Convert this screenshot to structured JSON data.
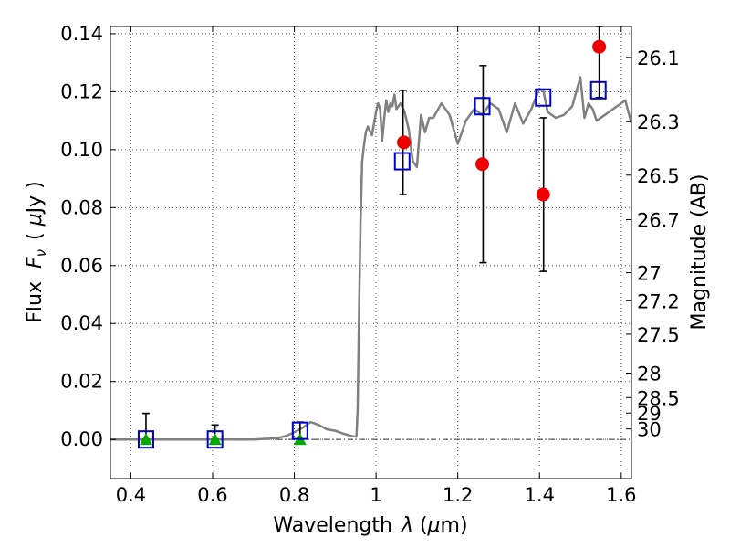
{
  "chart_data": {
    "type": "scatter",
    "xlabel": "Wavelength",
    "xlabel_symbol": "λ",
    "xlabel_unit_open": " (",
    "xlabel_unit_mu": "μ",
    "xlabel_unit_rest": "m)",
    "ylabel": "Flux",
    "ylabel_symbol": "F",
    "ylabel_subscript": "ν",
    "ylabel_unit_open": "( ",
    "ylabel_unit_mu": "μ",
    "ylabel_unit_rest": "Jy )",
    "ylabel_right": "Magnitude (AB)",
    "xlim": [
      0.35,
      1.625
    ],
    "ylim": [
      -0.0135,
      0.1425
    ],
    "grid": true,
    "x_ticks": [
      {
        "v": 0.4,
        "label": "0.4"
      },
      {
        "v": 0.6,
        "label": "0.6"
      },
      {
        "v": 0.8,
        "label": "0.8"
      },
      {
        "v": 1.0,
        "label": "1"
      },
      {
        "v": 1.2,
        "label": "1.2"
      },
      {
        "v": 1.4,
        "label": "1.4"
      },
      {
        "v": 1.6,
        "label": "1.6"
      }
    ],
    "y_ticks": [
      {
        "v": 0.0,
        "label": "0.00"
      },
      {
        "v": 0.02,
        "label": "0.02"
      },
      {
        "v": 0.04,
        "label": "0.04"
      },
      {
        "v": 0.06,
        "label": "0.06"
      },
      {
        "v": 0.08,
        "label": "0.08"
      },
      {
        "v": 0.1,
        "label": "0.10"
      },
      {
        "v": 0.12,
        "label": "0.12"
      },
      {
        "v": 0.14,
        "label": "0.14"
      }
    ],
    "right_ticks": [
      {
        "mag": 26.1,
        "label": "26.1"
      },
      {
        "mag": 26.3,
        "label": "26.3"
      },
      {
        "mag": 26.5,
        "label": "26.5"
      },
      {
        "mag": 26.7,
        "label": "26.7"
      },
      {
        "mag": 27,
        "label": "27"
      },
      {
        "mag": 27.2,
        "label": "27.2"
      },
      {
        "mag": 27.5,
        "label": "27.5"
      },
      {
        "mag": 28,
        "label": "28"
      },
      {
        "mag": 28.5,
        "label": "28.5"
      },
      {
        "mag": 29,
        "label": "29"
      },
      {
        "mag": 30,
        "label": "30"
      }
    ],
    "model_spectrum": {
      "color": "#808080",
      "x": [
        0.35,
        0.4,
        0.45,
        0.5,
        0.55,
        0.6,
        0.65,
        0.7,
        0.74,
        0.76,
        0.78,
        0.8,
        0.82,
        0.84,
        0.86,
        0.88,
        0.9,
        0.92,
        0.94,
        0.952,
        0.955,
        0.958,
        0.962,
        0.966,
        0.97,
        0.975,
        0.98,
        0.99,
        1.0,
        1.005,
        1.01,
        1.015,
        1.02,
        1.025,
        1.03,
        1.035,
        1.04,
        1.045,
        1.05,
        1.06,
        1.07,
        1.08,
        1.09,
        1.1,
        1.11,
        1.12,
        1.13,
        1.14,
        1.16,
        1.18,
        1.2,
        1.22,
        1.24,
        1.26,
        1.28,
        1.3,
        1.32,
        1.34,
        1.36,
        1.38,
        1.4,
        1.41,
        1.42,
        1.44,
        1.46,
        1.48,
        1.5,
        1.51,
        1.52,
        1.53,
        1.54,
        1.56,
        1.58,
        1.6,
        1.61,
        1.625
      ],
      "y": [
        0.0,
        0.0,
        0.0,
        0.0,
        0.0,
        0.0,
        0.0,
        0.0,
        0.0003,
        0.0006,
        0.0012,
        0.0025,
        0.004,
        0.006,
        0.005,
        0.0035,
        0.003,
        0.002,
        0.0012,
        0.0009,
        0.01,
        0.04,
        0.075,
        0.096,
        0.101,
        0.106,
        0.108,
        0.105,
        0.113,
        0.116,
        0.114,
        0.103,
        0.111,
        0.117,
        0.113,
        0.116,
        0.115,
        0.119,
        0.114,
        0.116,
        0.113,
        0.107,
        0.096,
        0.094,
        0.112,
        0.106,
        0.111,
        0.111,
        0.116,
        0.112,
        0.102,
        0.11,
        0.114,
        0.112,
        0.116,
        0.114,
        0.106,
        0.116,
        0.109,
        0.114,
        0.121,
        0.12,
        0.113,
        0.111,
        0.112,
        0.115,
        0.125,
        0.111,
        0.116,
        0.114,
        0.11,
        0.112,
        0.114,
        0.116,
        0.117,
        0.109
      ]
    },
    "series": [
      {
        "marker": "square",
        "color": "#0000cc",
        "points": [
          {
            "x": 0.437,
            "y": 0.0
          },
          {
            "x": 0.606,
            "y": 0.0
          },
          {
            "x": 0.814,
            "y": 0.003
          },
          {
            "x": 1.064,
            "y": 0.096
          },
          {
            "x": 1.26,
            "y": 0.115
          },
          {
            "x": 1.409,
            "y": 0.118
          },
          {
            "x": 1.544,
            "y": 0.1205
          }
        ]
      },
      {
        "marker": "circle",
        "color": "#ee0000",
        "points": [
          {
            "x": 1.068,
            "y": 0.1025
          },
          {
            "x": 1.26,
            "y": 0.095
          },
          {
            "x": 1.409,
            "y": 0.0845
          },
          {
            "x": 1.546,
            "y": 0.1355
          }
        ]
      },
      {
        "marker": "triangle",
        "color": "#00aa00",
        "points": [
          {
            "x": 0.437,
            "y": 0.0
          },
          {
            "x": 0.606,
            "y": 0.0
          },
          {
            "x": 0.814,
            "y": 0.0
          }
        ]
      }
    ],
    "errorbars": [
      {
        "x": 0.437,
        "low": 0.0,
        "high": 0.009
      },
      {
        "x": 0.606,
        "low": 0.0,
        "high": 0.005
      },
      {
        "x": 0.814,
        "low": 0.0,
        "high": 0.006
      },
      {
        "x": 1.066,
        "low": 0.0845,
        "high": 0.1205
      },
      {
        "x": 1.262,
        "low": 0.061,
        "high": 0.129
      },
      {
        "x": 1.41,
        "low": 0.058,
        "high": 0.111
      },
      {
        "x": 1.546,
        "low": 0.118,
        "high": 0.1425
      }
    ]
  }
}
